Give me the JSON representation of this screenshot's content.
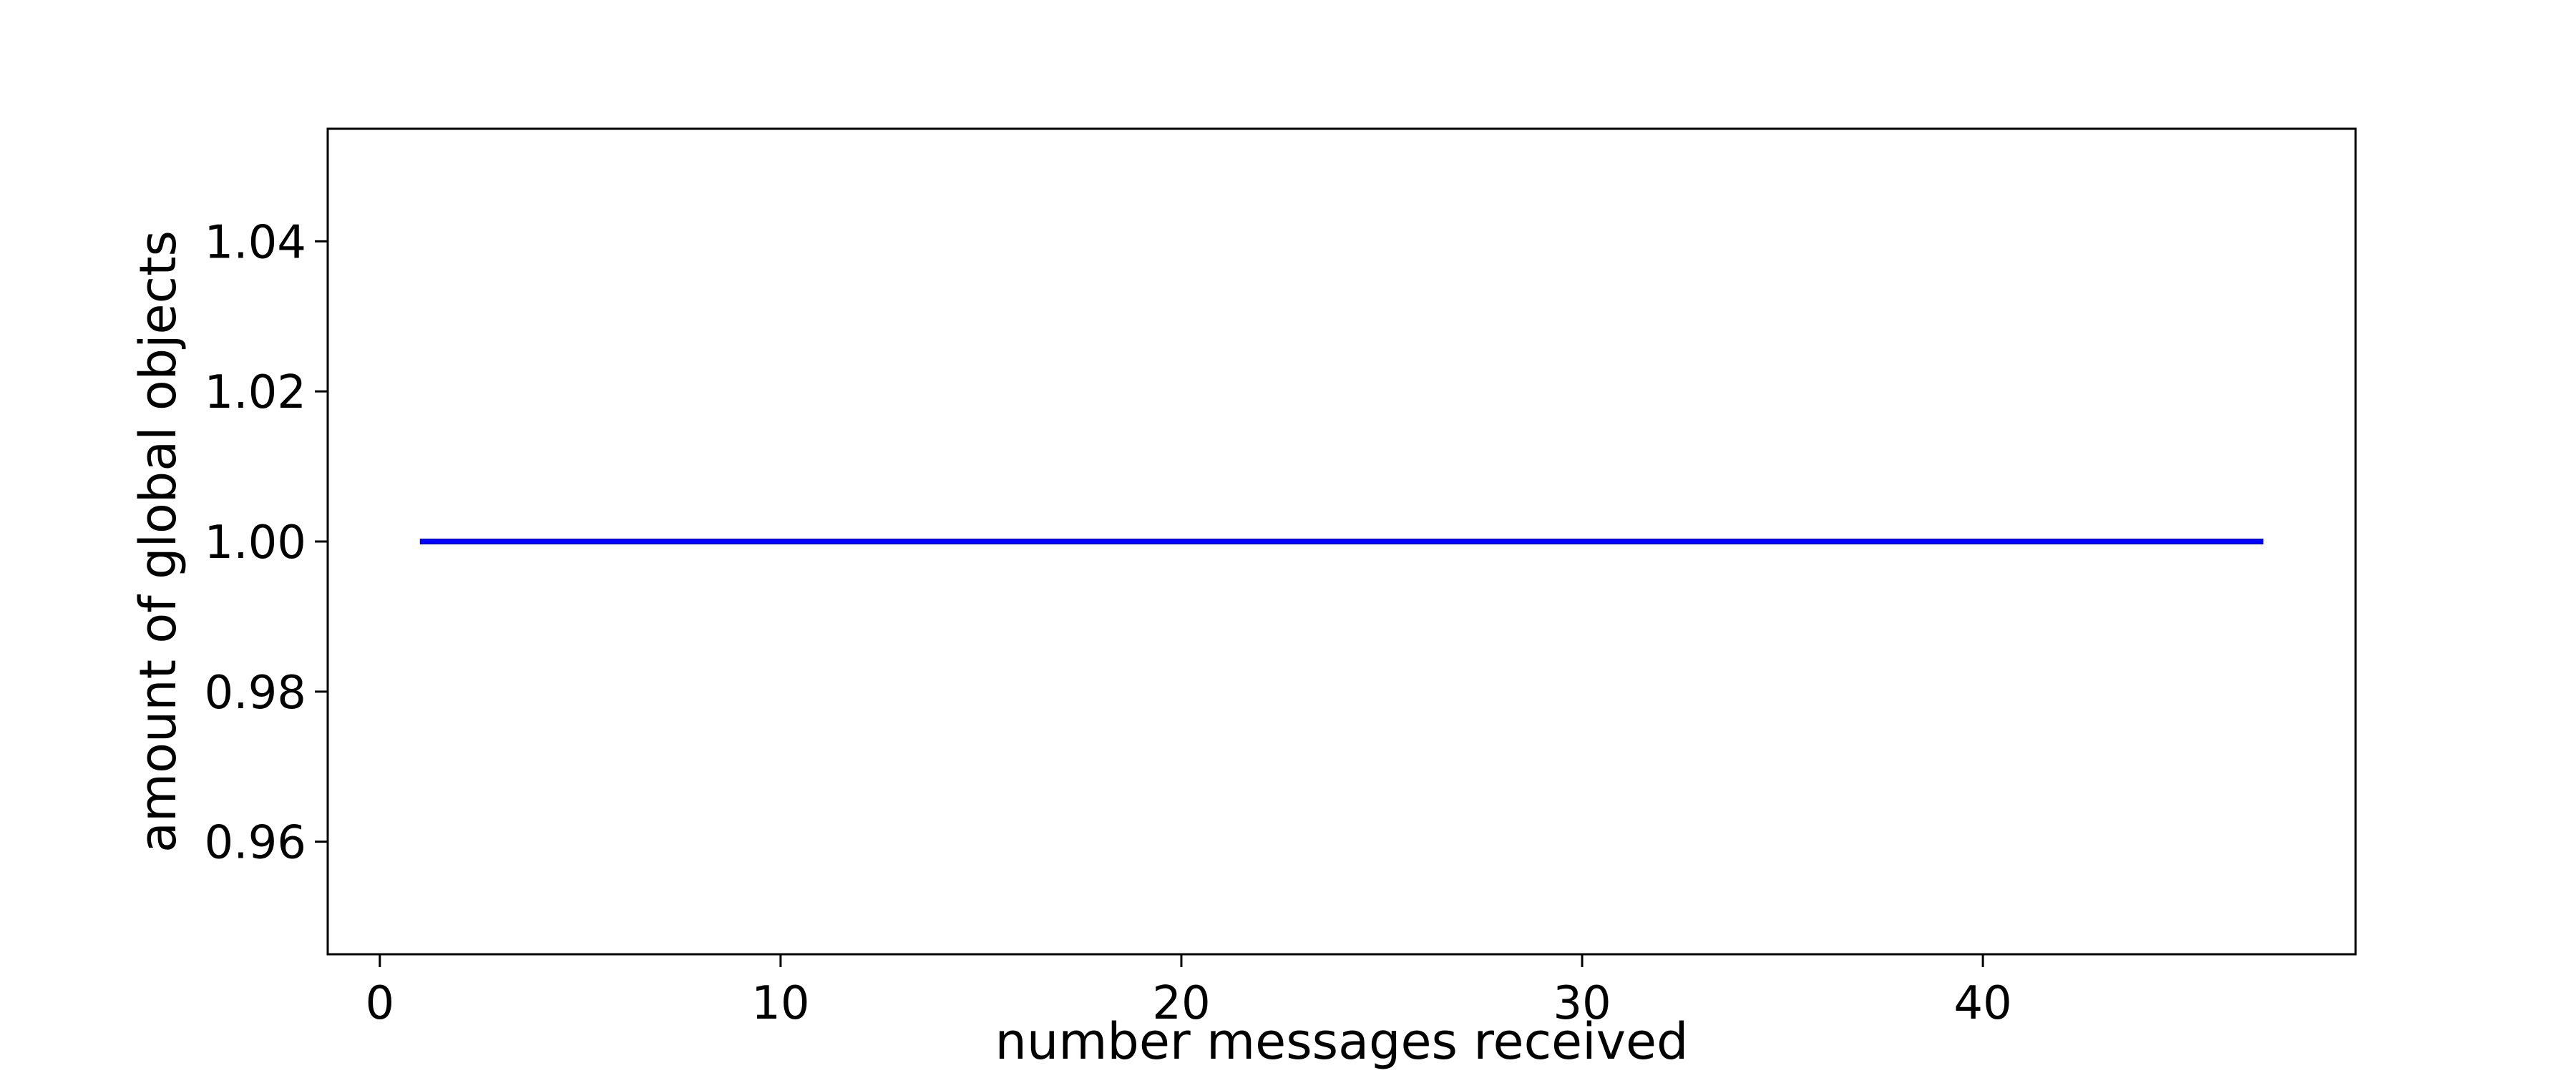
{
  "chart_data": {
    "type": "line",
    "title": "",
    "xlabel": "number messages received",
    "ylabel": "amount of global objects",
    "xlim": [
      -1.3,
      49.3
    ],
    "ylim": [
      0.945,
      1.055
    ],
    "xticks": [
      0,
      10,
      20,
      30,
      40
    ],
    "xtick_labels": [
      "0",
      "10",
      "20",
      "30",
      "40"
    ],
    "yticks": [
      0.96,
      0.98,
      1.0,
      1.02,
      1.04
    ],
    "ytick_labels": [
      "0.96",
      "0.98",
      "1.00",
      "1.02",
      "1.04"
    ],
    "grid": false,
    "legend": "none",
    "series": [
      {
        "color": "#0000ff",
        "x": [
          1,
          2,
          3,
          4,
          5,
          6,
          7,
          8,
          9,
          10,
          11,
          12,
          13,
          14,
          15,
          16,
          17,
          18,
          19,
          20,
          21,
          22,
          23,
          24,
          25,
          26,
          27,
          28,
          29,
          30,
          31,
          32,
          33,
          34,
          35,
          36,
          37,
          38,
          39,
          40,
          41,
          42,
          43,
          44,
          45,
          46,
          47
        ],
        "y": [
          1,
          1,
          1,
          1,
          1,
          1,
          1,
          1,
          1,
          1,
          1,
          1,
          1,
          1,
          1,
          1,
          1,
          1,
          1,
          1,
          1,
          1,
          1,
          1,
          1,
          1,
          1,
          1,
          1,
          1,
          1,
          1,
          1,
          1,
          1,
          1,
          1,
          1,
          1,
          1,
          1,
          1,
          1,
          1,
          1,
          1,
          1
        ]
      }
    ]
  }
}
